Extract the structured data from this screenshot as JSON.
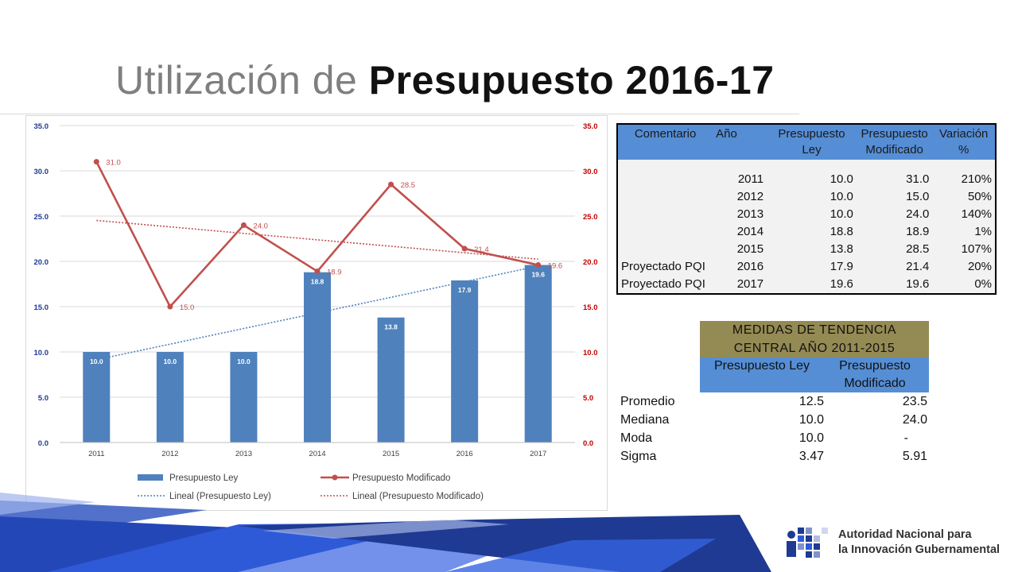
{
  "title": {
    "regular": "Utilización de",
    "bold": "Presupuesto 2016-17"
  },
  "chart_data": {
    "type": "bar",
    "categories": [
      "2011",
      "2012",
      "2013",
      "2014",
      "2015",
      "2016",
      "2017"
    ],
    "series": [
      {
        "name": "Presupuesto Ley",
        "kind": "bar",
        "color": "#4f81bd",
        "values": [
          10.0,
          10.0,
          10.0,
          18.8,
          13.8,
          17.9,
          19.6
        ],
        "labels": [
          "10.0",
          "10.0",
          "10.0",
          "18.8",
          "13.8",
          "17.9",
          "19.6"
        ]
      },
      {
        "name": "Presupuesto Modificado",
        "kind": "line",
        "color": "#c0504d",
        "values": [
          31.0,
          15.0,
          24.0,
          18.9,
          28.5,
          21.4,
          19.6
        ],
        "labels": [
          "31.0",
          "15.0",
          "24.0",
          "18.9",
          "28.5",
          "21.4",
          "19.6"
        ]
      },
      {
        "name": "Lineal (Presupuesto Ley)",
        "kind": "trend",
        "color": "#4f81bd",
        "values": [
          9.14,
          10.86,
          12.59,
          14.31,
          16.03,
          17.76,
          19.48
        ]
      },
      {
        "name": "Lineal (Presupuesto Modificado)",
        "kind": "trend",
        "color": "#c0504d",
        "values": [
          24.52,
          23.81,
          23.09,
          22.38,
          21.67,
          20.95,
          20.24
        ]
      }
    ],
    "ylim": [
      0,
      35
    ],
    "yticks": [
      "0.0",
      "5.0",
      "10.0",
      "15.0",
      "20.0",
      "25.0",
      "30.0",
      "35.0"
    ],
    "grid": true,
    "legend_position": "bottom"
  },
  "table1": {
    "headers": [
      "Comentario",
      "Año",
      "Presupuesto Ley",
      "Presupuesto Modificado",
      "Variación %"
    ],
    "header4_lines": [
      "Presupuesto",
      "Modificado"
    ],
    "rows": [
      [
        "",
        "2011",
        "10.0",
        "31.0",
        "210%"
      ],
      [
        "",
        "2012",
        "10.0",
        "15.0",
        "50%"
      ],
      [
        "",
        "2013",
        "10.0",
        "24.0",
        "140%"
      ],
      [
        "",
        "2014",
        "18.8",
        "18.9",
        "1%"
      ],
      [
        "",
        "2015",
        "13.8",
        "28.5",
        "107%"
      ],
      [
        "Proyectado PQI",
        "2016",
        "17.9",
        "21.4",
        "20%"
      ],
      [
        "Proyectado PQI",
        "2017",
        "19.6",
        "19.6",
        "0%"
      ]
    ]
  },
  "table2": {
    "title_lines": [
      "MEDIDAS DE TENDENCIA",
      "CENTRAL AÑO 2011-2015"
    ],
    "col1": "Presupuesto Ley",
    "col2_lines": [
      "Presupuesto",
      "Modificado"
    ],
    "rows": [
      {
        "label": "Promedio",
        "ley": "12.5",
        "mod": "23.5"
      },
      {
        "label": "Mediana",
        "ley": "10.0",
        "mod": "24.0"
      },
      {
        "label": "Moda",
        "ley": "10.0",
        "mod": "-"
      },
      {
        "label": "Sigma",
        "ley": "3.47",
        "mod": "5.91"
      }
    ]
  },
  "logo": {
    "line1": "Autoridad Nacional para",
    "line2": "la Innovación Gubernamental",
    "icon": "ani-logo-icon"
  },
  "colors": {
    "bar": "#4f81bd",
    "line": "#c0504d",
    "table_header": "#558ed5",
    "stats_header": "#948a54",
    "footer_dark": "#1f3a93",
    "footer_mid": "#2e5ad8"
  }
}
